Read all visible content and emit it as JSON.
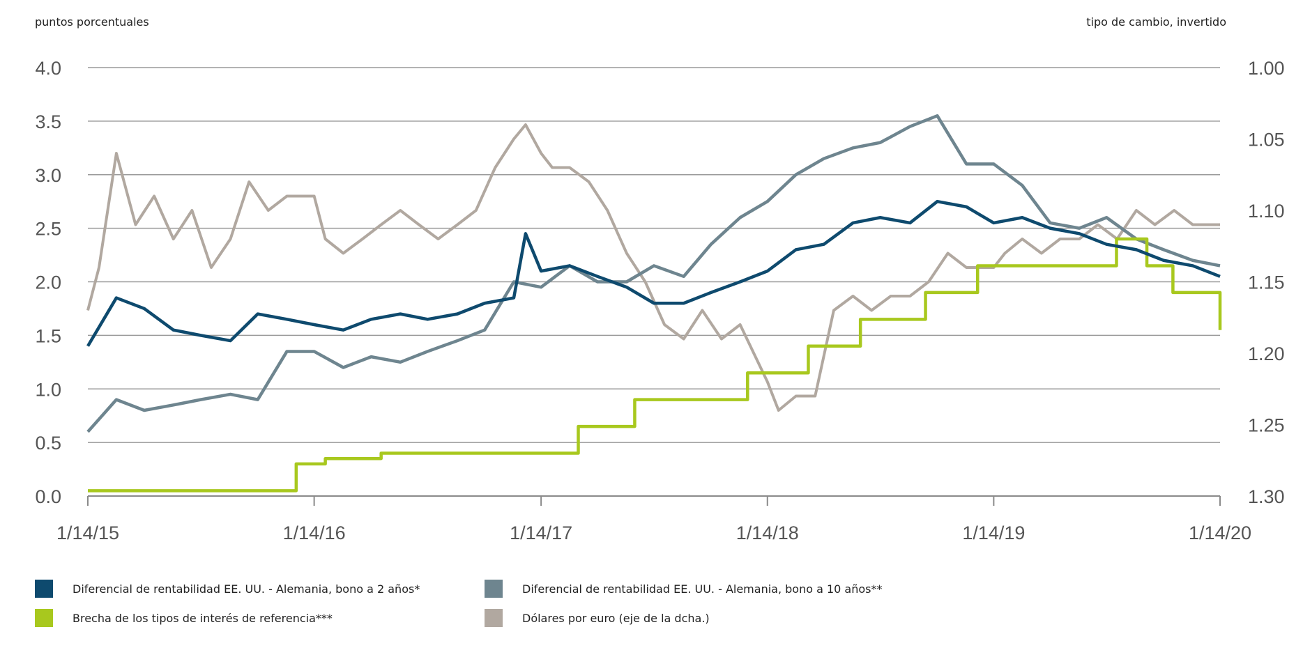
{
  "chart_data": {
    "type": "line",
    "left_axis_label": "puntos porcentuales",
    "right_axis_label": "tipo de cambio, invertido",
    "x_ticks": [
      "1/14/15",
      "1/14/16",
      "1/14/17",
      "1/14/18",
      "1/14/19",
      "1/14/20"
    ],
    "y_left": {
      "min": 0.0,
      "max": 4.0,
      "ticks": [
        "0.0",
        "0.5",
        "1.0",
        "1.5",
        "2.0",
        "2.5",
        "3.0",
        "3.5",
        "4.0"
      ]
    },
    "y_right": {
      "min": 1.0,
      "max": 1.3,
      "inverted": true,
      "ticks": [
        "1.00",
        "1.05",
        "1.10",
        "1.15",
        "1.20",
        "1.25",
        "1.30"
      ]
    },
    "grid": "horizontal",
    "legend_position": "bottom",
    "series": [
      {
        "name": "Diferencial de rentabilidad EE. UU. - Alemania, bono a 2 años*",
        "color": "#0e4a6e",
        "axis": "left",
        "x": [
          "2015-01-14",
          "2015-03-01",
          "2015-04-15",
          "2015-06-01",
          "2015-07-15",
          "2015-09-01",
          "2015-10-15",
          "2015-12-01",
          "2016-01-14",
          "2016-03-01",
          "2016-04-15",
          "2016-06-01",
          "2016-07-15",
          "2016-09-01",
          "2016-10-15",
          "2016-12-01",
          "2016-12-20",
          "2017-01-14",
          "2017-03-01",
          "2017-04-15",
          "2017-06-01",
          "2017-07-15",
          "2017-09-01",
          "2017-10-15",
          "2017-12-01",
          "2018-01-14",
          "2018-03-01",
          "2018-04-15",
          "2018-06-01",
          "2018-07-15",
          "2018-09-01",
          "2018-10-15",
          "2018-12-01",
          "2019-01-14",
          "2019-03-01",
          "2019-04-15",
          "2019-06-01",
          "2019-07-15",
          "2019-09-01",
          "2019-10-15",
          "2019-12-01",
          "2020-01-14"
        ],
        "y": [
          1.4,
          1.85,
          1.75,
          1.55,
          1.5,
          1.45,
          1.7,
          1.65,
          1.6,
          1.55,
          1.65,
          1.7,
          1.65,
          1.7,
          1.8,
          1.85,
          2.45,
          2.1,
          2.15,
          2.05,
          1.95,
          1.8,
          1.8,
          1.9,
          2.0,
          2.1,
          2.3,
          2.35,
          2.55,
          2.6,
          2.55,
          2.75,
          2.7,
          2.55,
          2.6,
          2.5,
          2.45,
          2.35,
          2.3,
          2.2,
          2.15,
          2.05
        ]
      },
      {
        "name": "Diferencial de rentabilidad EE. UU. - Alemania, bono a 10 años**",
        "color": "#6e858f",
        "axis": "left",
        "x": [
          "2015-01-14",
          "2015-03-01",
          "2015-04-15",
          "2015-06-01",
          "2015-07-15",
          "2015-09-01",
          "2015-10-15",
          "2015-12-01",
          "2016-01-14",
          "2016-03-01",
          "2016-04-15",
          "2016-06-01",
          "2016-07-15",
          "2016-09-01",
          "2016-10-15",
          "2016-12-01",
          "2017-01-14",
          "2017-03-01",
          "2017-04-15",
          "2017-06-01",
          "2017-07-15",
          "2017-09-01",
          "2017-10-15",
          "2017-12-01",
          "2018-01-14",
          "2018-03-01",
          "2018-04-15",
          "2018-06-01",
          "2018-07-15",
          "2018-09-01",
          "2018-10-15",
          "2018-12-01",
          "2019-01-14",
          "2019-03-01",
          "2019-04-15",
          "2019-06-01",
          "2019-07-15",
          "2019-09-01",
          "2019-10-15",
          "2019-12-01",
          "2020-01-14"
        ],
        "y": [
          0.6,
          0.9,
          0.8,
          0.85,
          0.9,
          0.95,
          0.9,
          1.35,
          1.35,
          1.2,
          1.3,
          1.25,
          1.35,
          1.45,
          1.55,
          2.0,
          1.95,
          2.15,
          2.0,
          2.0,
          2.15,
          2.05,
          2.35,
          2.6,
          2.75,
          3.0,
          3.15,
          3.25,
          3.3,
          3.45,
          3.55,
          3.1,
          3.1,
          2.9,
          2.55,
          2.5,
          2.6,
          2.4,
          2.3,
          2.2,
          2.15
        ]
      },
      {
        "name": "Brecha de los tipos de interés de referencia***",
        "color": "#a8c81e",
        "axis": "left",
        "x": [
          "2015-01-14",
          "2015-12-16",
          "2016-02-01",
          "2016-05-01",
          "2016-12-14",
          "2017-03-15",
          "2017-06-14",
          "2017-12-13",
          "2018-03-21",
          "2018-06-13",
          "2018-09-26",
          "2018-12-19",
          "2019-07-31",
          "2019-09-18",
          "2019-10-30",
          "2020-01-14"
        ],
        "y": [
          0.05,
          0.3,
          0.35,
          0.4,
          0.4,
          0.65,
          0.9,
          1.15,
          1.4,
          1.65,
          1.9,
          2.15,
          2.4,
          2.15,
          1.9,
          1.55
        ]
      },
      {
        "name": "Dólares por euro (eje de la dcha.)",
        "color": "#b1a8a0",
        "axis": "right",
        "x": [
          "2015-01-14",
          "2015-02-01",
          "2015-03-01",
          "2015-04-01",
          "2015-05-01",
          "2015-06-01",
          "2015-07-01",
          "2015-08-01",
          "2015-09-01",
          "2015-10-01",
          "2015-11-01",
          "2015-12-01",
          "2016-01-14",
          "2016-02-01",
          "2016-03-01",
          "2016-04-01",
          "2016-05-01",
          "2016-06-01",
          "2016-07-01",
          "2016-08-01",
          "2016-09-01",
          "2016-10-01",
          "2016-11-01",
          "2016-12-01",
          "2016-12-20",
          "2017-01-14",
          "2017-02-01",
          "2017-03-01",
          "2017-04-01",
          "2017-05-01",
          "2017-06-01",
          "2017-07-01",
          "2017-08-01",
          "2017-09-01",
          "2017-10-01",
          "2017-11-01",
          "2017-12-01",
          "2018-01-14",
          "2018-02-01",
          "2018-03-01",
          "2018-04-01",
          "2018-05-01",
          "2018-06-01",
          "2018-07-01",
          "2018-08-01",
          "2018-09-01",
          "2018-10-01",
          "2018-11-01",
          "2018-12-01",
          "2019-01-14",
          "2019-02-01",
          "2019-03-01",
          "2019-04-01",
          "2019-05-01",
          "2019-06-01",
          "2019-07-01",
          "2019-08-01",
          "2019-09-01",
          "2019-10-01",
          "2019-11-01",
          "2019-12-01",
          "2020-01-14"
        ],
        "y": [
          1.17,
          1.14,
          1.06,
          1.11,
          1.09,
          1.12,
          1.1,
          1.14,
          1.12,
          1.08,
          1.1,
          1.09,
          1.09,
          1.12,
          1.13,
          1.12,
          1.11,
          1.1,
          1.11,
          1.12,
          1.11,
          1.1,
          1.07,
          1.05,
          1.04,
          1.06,
          1.07,
          1.07,
          1.08,
          1.1,
          1.13,
          1.15,
          1.18,
          1.19,
          1.17,
          1.19,
          1.18,
          1.22,
          1.24,
          1.23,
          1.23,
          1.17,
          1.16,
          1.17,
          1.16,
          1.16,
          1.15,
          1.13,
          1.14,
          1.14,
          1.13,
          1.12,
          1.13,
          1.12,
          1.12,
          1.11,
          1.12,
          1.1,
          1.11,
          1.1,
          1.11,
          1.11
        ]
      }
    ]
  }
}
